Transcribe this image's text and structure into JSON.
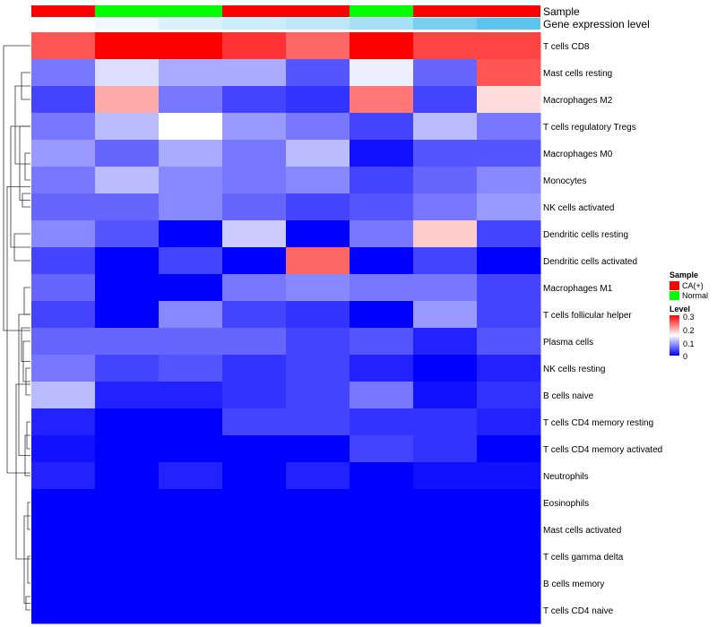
{
  "chart_data": {
    "type": "heatmap",
    "column_annotations": [
      {
        "label": "Sample",
        "values": [
          "CA(+)",
          "Normal",
          "Normal",
          "CA(+)",
          "CA(+)",
          "Normal",
          "CA(+)",
          "CA(+)"
        ]
      },
      {
        "label": "Gene expression level",
        "values": [
          0.0,
          0.05,
          0.12,
          0.17,
          0.22,
          0.3,
          0.45,
          0.55
        ]
      }
    ],
    "rows": [
      "T cells CD8",
      "Mast cells resting",
      "Macrophages M2",
      "T cells regulatory  Tregs",
      "Macrophages M0",
      "Monocytes",
      "NK cells activated",
      "Dendritic cells resting",
      "Dendritic cells activated",
      "Macrophages M1",
      "T cells follicular helper",
      "Plasma cells",
      "NK cells resting",
      "B cells naive",
      "T cells CD4 memory resting",
      "T cells CD4 memory activated",
      "Neutrophils",
      "Eosinophils",
      "Mast cells activated",
      "T cells gamma delta",
      "B cells memory",
      "T cells CD4 naive"
    ],
    "values": [
      [
        0.25,
        0.3,
        0.3,
        0.27,
        0.24,
        0.3,
        0.26,
        0.26
      ],
      [
        0.07,
        0.13,
        0.1,
        0.1,
        0.05,
        0.14,
        0.06,
        0.25
      ],
      [
        0.04,
        0.2,
        0.07,
        0.04,
        0.03,
        0.23,
        0.04,
        0.17
      ],
      [
        0.07,
        0.11,
        0.15,
        0.09,
        0.07,
        0.04,
        0.11,
        0.07
      ],
      [
        0.09,
        0.06,
        0.1,
        0.07,
        0.11,
        0.01,
        0.05,
        0.05
      ],
      [
        0.07,
        0.11,
        0.08,
        0.07,
        0.08,
        0.04,
        0.06,
        0.08
      ],
      [
        0.06,
        0.06,
        0.08,
        0.06,
        0.04,
        0.05,
        0.07,
        0.09
      ],
      [
        0.08,
        0.05,
        0.0,
        0.12,
        0.0,
        0.07,
        0.18,
        0.04
      ],
      [
        0.04,
        0.0,
        0.04,
        0.0,
        0.24,
        0.0,
        0.04,
        0.0
      ],
      [
        0.06,
        0.0,
        0.0,
        0.07,
        0.08,
        0.07,
        0.07,
        0.04
      ],
      [
        0.04,
        0.0,
        0.08,
        0.04,
        0.03,
        0.0,
        0.09,
        0.04
      ],
      [
        0.06,
        0.06,
        0.06,
        0.06,
        0.04,
        0.05,
        0.02,
        0.05
      ],
      [
        0.07,
        0.04,
        0.05,
        0.03,
        0.04,
        0.02,
        0.0,
        0.02
      ],
      [
        0.11,
        0.02,
        0.02,
        0.03,
        0.04,
        0.07,
        0.01,
        0.03
      ],
      [
        0.02,
        0.0,
        0.0,
        0.04,
        0.04,
        0.03,
        0.03,
        0.02
      ],
      [
        0.01,
        0.0,
        0.0,
        0.0,
        0.0,
        0.04,
        0.03,
        0.0
      ],
      [
        0.02,
        0.0,
        0.02,
        0.0,
        0.02,
        0.0,
        0.01,
        0.01
      ],
      [
        0.0,
        0.0,
        0.0,
        0.0,
        0.0,
        0.0,
        0.0,
        0.0
      ],
      [
        0.0,
        0.0,
        0.0,
        0.0,
        0.0,
        0.0,
        0.0,
        0.0
      ],
      [
        0.0,
        0.0,
        0.0,
        0.0,
        0.0,
        0.0,
        0.0,
        0.0
      ],
      [
        0.0,
        0.0,
        0.0,
        0.0,
        0.0,
        0.0,
        0.0,
        0.0
      ],
      [
        0.0,
        0.0,
        0.0,
        0.0,
        0.0,
        0.0,
        0.0,
        0.0
      ]
    ],
    "color_scale": {
      "min": 0,
      "max": 0.3,
      "low_color": "#0000ff",
      "mid_color": "#ffffff",
      "high_color": "#ff0000"
    },
    "legend": {
      "sample": {
        "title": "Sample",
        "entries": [
          {
            "label": "CA(+)",
            "color": "#ff0000"
          },
          {
            "label": "Normal",
            "color": "#00ff00"
          }
        ]
      },
      "level": {
        "title": "Level",
        "ticks": [
          "0.3",
          "0.2",
          "0.1",
          "0"
        ]
      }
    },
    "expression_level_colors": [
      "#ffffff",
      "#5bc4ef"
    ],
    "legend_position": "right",
    "row_dendrogram": true
  }
}
